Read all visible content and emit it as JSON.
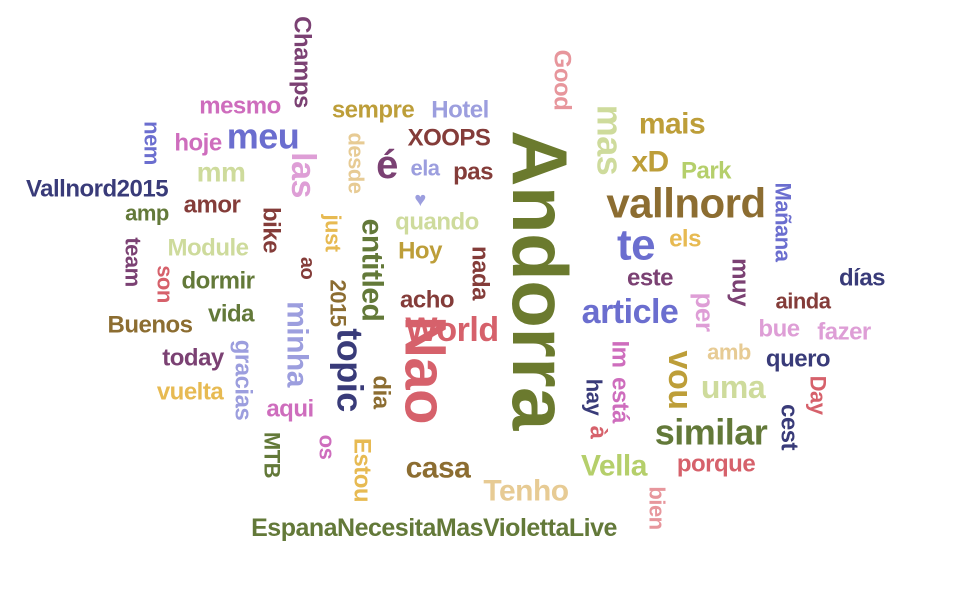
{
  "palette": {
    "olive": "#6b7a2e",
    "darkolive": "#5c7033",
    "navy": "#393b79",
    "periwinkle": "#6b6ecf",
    "lavender": "#9c9ede",
    "plum": "#7b4173",
    "orchid": "#ce6dbd",
    "pink": "#de9ed6",
    "rose": "#e7969c",
    "red": "#d6616b",
    "maroon": "#843c39",
    "brown": "#8c6d31",
    "gold": "#bd9e39",
    "sand": "#e7cb94",
    "lime": "#b5cf6b",
    "pale": "#cedb9c",
    "green": "#637939",
    "mustard": "#e7ba52"
  },
  "words": [
    {
      "text": "Andorra",
      "color": "olive"
    },
    {
      "text": "Nao",
      "color": "red"
    },
    {
      "text": "World",
      "color": "red"
    },
    {
      "text": "vallnord",
      "color": "brown"
    },
    {
      "text": "meu",
      "color": "periwinkle"
    },
    {
      "text": "te",
      "color": "periwinkle"
    },
    {
      "text": "article",
      "color": "periwinkle"
    },
    {
      "text": "é",
      "color": "plum"
    },
    {
      "text": "topic",
      "color": "navy"
    },
    {
      "text": "similar",
      "color": "green"
    },
    {
      "text": "Vella",
      "color": "lime"
    },
    {
      "text": "mas",
      "color": "pale"
    },
    {
      "text": "las",
      "color": "pink"
    },
    {
      "text": "entitled",
      "color": "green"
    },
    {
      "text": "casa",
      "color": "brown"
    },
    {
      "text": "Tenho",
      "color": "sand"
    },
    {
      "text": "uma",
      "color": "pale"
    },
    {
      "text": "vou",
      "color": "gold"
    },
    {
      "text": "mais",
      "color": "gold"
    },
    {
      "text": "minha",
      "color": "lavender"
    },
    {
      "text": "EspanaNecesitaMasViolettaLive",
      "color": "green"
    },
    {
      "text": "Vallnord2015",
      "color": "navy"
    },
    {
      "text": "Champs",
      "color": "plum"
    },
    {
      "text": "mm",
      "color": "pale"
    },
    {
      "text": "xD",
      "color": "gold"
    },
    {
      "text": "sempre",
      "color": "gold"
    },
    {
      "text": "Hotel",
      "color": "lavender"
    },
    {
      "text": "mesmo",
      "color": "orchid"
    },
    {
      "text": "Good",
      "color": "rose"
    },
    {
      "text": "XOOPS",
      "color": "maroon"
    },
    {
      "text": "pas",
      "color": "maroon"
    },
    {
      "text": "hoje",
      "color": "orchid"
    },
    {
      "text": "nem",
      "color": "periwinkle"
    },
    {
      "text": "desde",
      "color": "sand"
    },
    {
      "text": "ela",
      "color": "lavender"
    },
    {
      "text": "amor",
      "color": "maroon"
    },
    {
      "text": "quando",
      "color": "pale"
    },
    {
      "text": "Hoy",
      "color": "gold"
    },
    {
      "text": "nada",
      "color": "maroon"
    },
    {
      "text": "amp",
      "color": "green"
    },
    {
      "text": "bike",
      "color": "maroon"
    },
    {
      "text": "just",
      "color": "mustard"
    },
    {
      "text": "2015",
      "color": "brown"
    },
    {
      "text": "ao",
      "color": "maroon"
    },
    {
      "text": "Module",
      "color": "pale"
    },
    {
      "text": "team",
      "color": "plum"
    },
    {
      "text": "son",
      "color": "red"
    },
    {
      "text": "dormir",
      "color": "green"
    },
    {
      "text": "vida",
      "color": "green"
    },
    {
      "text": "Buenos",
      "color": "brown"
    },
    {
      "text": "today",
      "color": "plum"
    },
    {
      "text": "gracias",
      "color": "lavender"
    },
    {
      "text": "vuelta",
      "color": "mustard"
    },
    {
      "text": "aqui",
      "color": "orchid"
    },
    {
      "text": "os",
      "color": "orchid"
    },
    {
      "text": "MTB",
      "color": "green"
    },
    {
      "text": "dia",
      "color": "brown"
    },
    {
      "text": "Estou",
      "color": "mustard"
    },
    {
      "text": "acho",
      "color": "maroon"
    },
    {
      "text": "Park",
      "color": "lime"
    },
    {
      "text": "els",
      "color": "mustard"
    },
    {
      "text": "este",
      "color": "plum"
    },
    {
      "text": "per",
      "color": "pink"
    },
    {
      "text": "Im",
      "color": "orchid"
    },
    {
      "text": "está",
      "color": "orchid"
    },
    {
      "text": "hay",
      "color": "navy"
    },
    {
      "text": "à",
      "color": "red"
    },
    {
      "text": "amb",
      "color": "sand"
    },
    {
      "text": "muy",
      "color": "plum"
    },
    {
      "text": "Mañana",
      "color": "periwinkle"
    },
    {
      "text": "ainda",
      "color": "maroon"
    },
    {
      "text": "días",
      "color": "navy"
    },
    {
      "text": "bue",
      "color": "pink"
    },
    {
      "text": "fazer",
      "color": "pink"
    },
    {
      "text": "quero",
      "color": "navy"
    },
    {
      "text": "Day",
      "color": "red"
    },
    {
      "text": "cest",
      "color": "navy"
    },
    {
      "text": "porque",
      "color": "red"
    },
    {
      "text": "bien",
      "color": "rose"
    },
    {
      "text": "♥",
      "color": "lavender"
    }
  ]
}
